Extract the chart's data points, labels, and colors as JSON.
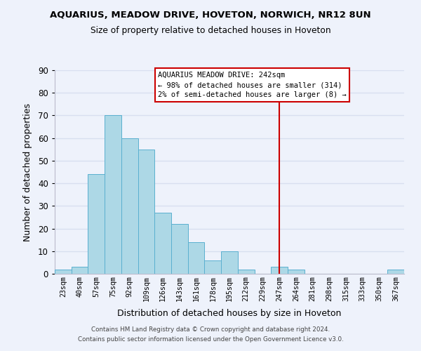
{
  "title": "AQUARIUS, MEADOW DRIVE, HOVETON, NORWICH, NR12 8UN",
  "subtitle": "Size of property relative to detached houses in Hoveton",
  "xlabel": "Distribution of detached houses by size in Hoveton",
  "ylabel": "Number of detached properties",
  "footer_line1": "Contains HM Land Registry data © Crown copyright and database right 2024.",
  "footer_line2": "Contains public sector information licensed under the Open Government Licence v3.0.",
  "bin_labels": [
    "23sqm",
    "40sqm",
    "57sqm",
    "75sqm",
    "92sqm",
    "109sqm",
    "126sqm",
    "143sqm",
    "161sqm",
    "178sqm",
    "195sqm",
    "212sqm",
    "229sqm",
    "247sqm",
    "264sqm",
    "281sqm",
    "298sqm",
    "315sqm",
    "333sqm",
    "350sqm",
    "367sqm"
  ],
  "bar_values": [
    2,
    3,
    44,
    70,
    60,
    55,
    27,
    22,
    14,
    6,
    10,
    2,
    0,
    3,
    2,
    0,
    0,
    0,
    0,
    0,
    2
  ],
  "bar_color": "#add8e6",
  "bar_edge_color": "#5ab0d0",
  "ylim": [
    0,
    90
  ],
  "yticks": [
    0,
    10,
    20,
    30,
    40,
    50,
    60,
    70,
    80,
    90
  ],
  "vline_x": 13.5,
  "vline_color": "#cc0000",
  "annotation_title": "AQUARIUS MEADOW DRIVE: 242sqm",
  "annotation_line1": "← 98% of detached houses are smaller (314)",
  "annotation_line2": "2% of semi-detached houses are larger (8) →",
  "annotation_box_edge": "#cc0000",
  "background_color": "#eef2fb",
  "grid_color": "#d8dff0"
}
